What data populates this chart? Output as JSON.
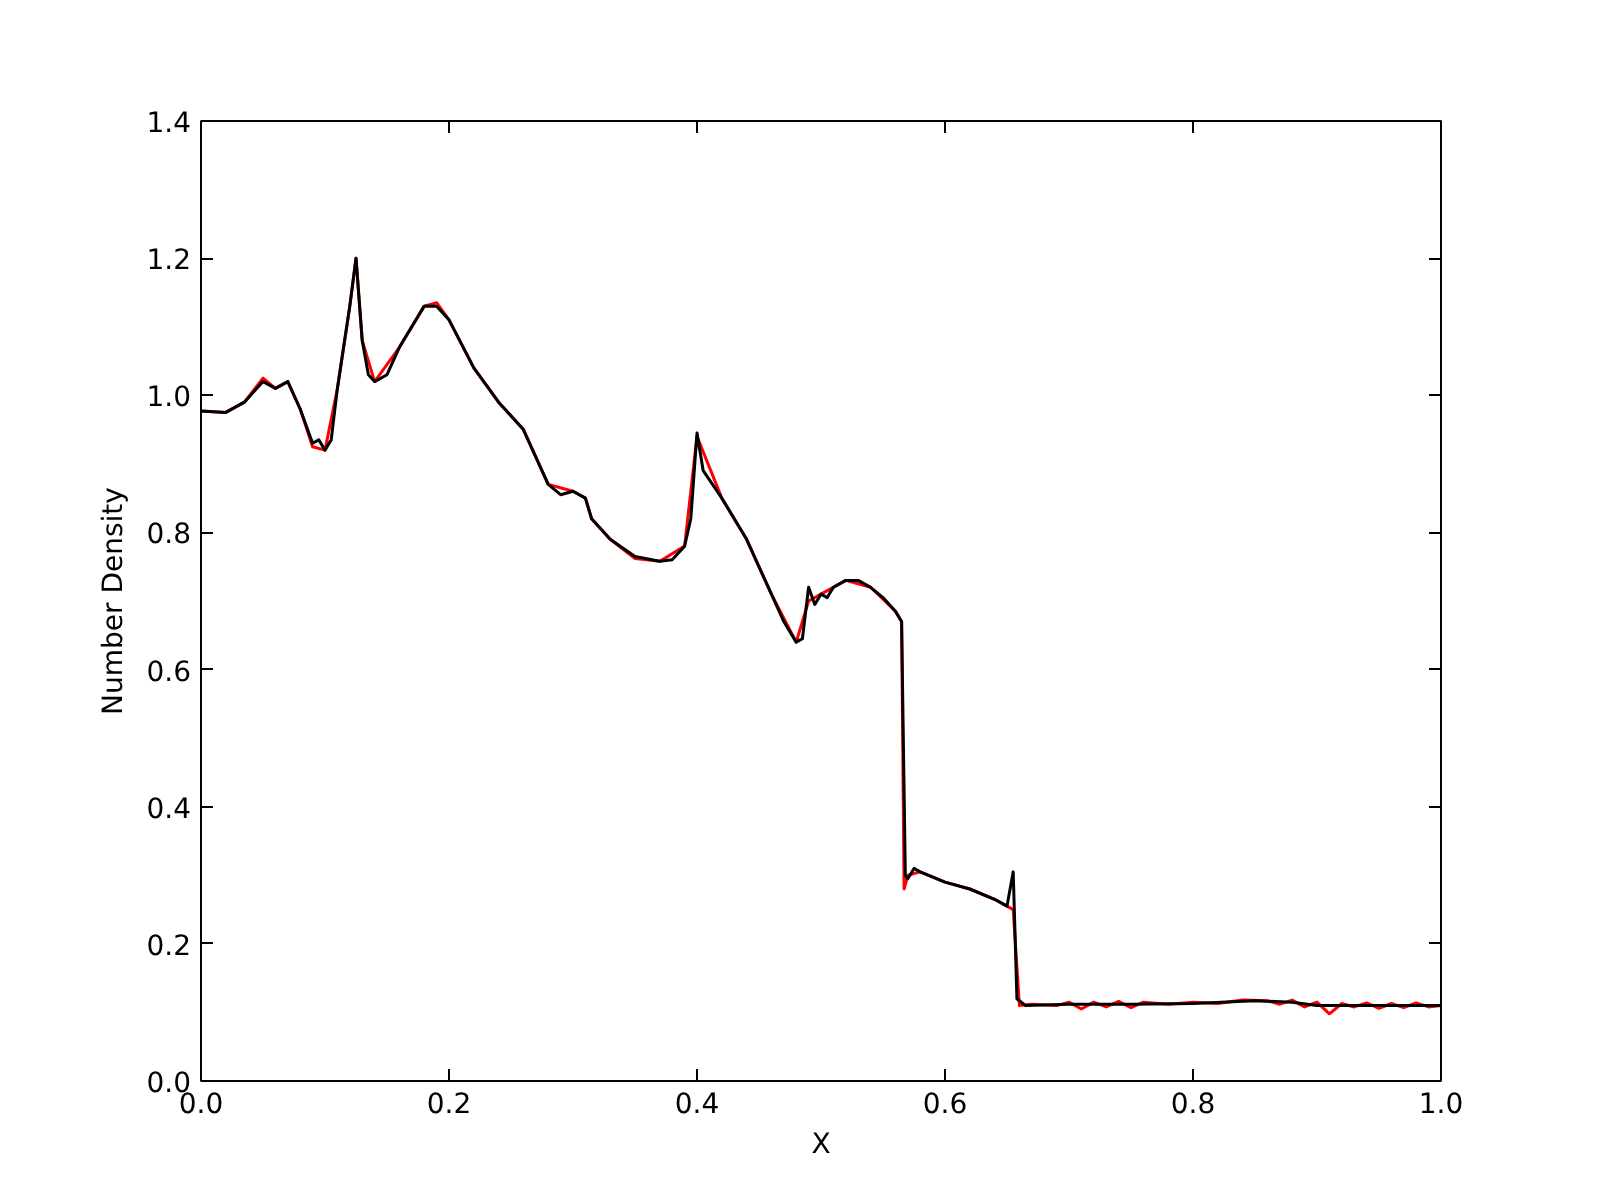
{
  "chart_data": {
    "type": "line",
    "xlabel": "X",
    "ylabel": "Number Density",
    "xlim": [
      0,
      1
    ],
    "ylim": [
      0,
      1.4
    ],
    "xticks": [
      {
        "value": 0,
        "label": "0.0"
      },
      {
        "value": 0.2,
        "label": "0.2"
      },
      {
        "value": 0.4,
        "label": "0.4"
      },
      {
        "value": 0.6,
        "label": "0.6"
      },
      {
        "value": 0.8,
        "label": "0.8"
      },
      {
        "value": 1,
        "label": "1.0"
      }
    ],
    "yticks": [
      {
        "value": 0,
        "label": "0.0"
      },
      {
        "value": 0.2,
        "label": "0.2"
      },
      {
        "value": 0.4,
        "label": "0.4"
      },
      {
        "value": 0.6,
        "label": "0.6"
      },
      {
        "value": 0.8,
        "label": "0.8"
      },
      {
        "value": 1,
        "label": "1.0"
      },
      {
        "value": 1.2,
        "label": "1.2"
      },
      {
        "value": 1.4,
        "label": "1.4"
      }
    ],
    "grid": false,
    "line_style": "solid",
    "marker": "none",
    "series": [
      {
        "color": "#ff0000",
        "x": [
          0,
          0.02,
          0.035,
          0.05,
          0.06,
          0.07,
          0.08,
          0.09,
          0.1,
          0.11,
          0.12,
          0.125,
          0.13,
          0.14,
          0.16,
          0.18,
          0.19,
          0.2,
          0.22,
          0.24,
          0.26,
          0.28,
          0.3,
          0.31,
          0.315,
          0.33,
          0.35,
          0.37,
          0.39,
          0.4,
          0.42,
          0.44,
          0.46,
          0.48,
          0.49,
          0.5,
          0.52,
          0.54,
          0.56,
          0.565,
          0.567,
          0.57,
          0.58,
          0.6,
          0.62,
          0.64,
          0.65,
          0.655,
          0.66,
          0.67,
          0.69,
          0.7,
          0.71,
          0.72,
          0.73,
          0.74,
          0.75,
          0.76,
          0.78,
          0.8,
          0.82,
          0.84,
          0.86,
          0.87,
          0.88,
          0.89,
          0.9,
          0.91,
          0.92,
          0.93,
          0.94,
          0.95,
          0.96,
          0.97,
          0.98,
          0.99,
          1.0
        ],
        "values": [
          0.977,
          0.975,
          0.99,
          1.025,
          1.01,
          1.02,
          0.98,
          0.925,
          0.92,
          1.01,
          1.13,
          1.2,
          1.08,
          1.02,
          1.07,
          1.13,
          1.135,
          1.11,
          1.04,
          0.99,
          0.95,
          0.87,
          0.86,
          0.85,
          0.82,
          0.79,
          0.762,
          0.758,
          0.78,
          0.94,
          0.85,
          0.79,
          0.71,
          0.64,
          0.7,
          0.71,
          0.73,
          0.72,
          0.685,
          0.67,
          0.28,
          0.3,
          0.305,
          0.29,
          0.28,
          0.265,
          0.255,
          0.25,
          0.11,
          0.112,
          0.11,
          0.115,
          0.105,
          0.115,
          0.108,
          0.116,
          0.107,
          0.115,
          0.112,
          0.115,
          0.113,
          0.118,
          0.117,
          0.112,
          0.118,
          0.108,
          0.115,
          0.098,
          0.113,
          0.108,
          0.114,
          0.106,
          0.113,
          0.107,
          0.114,
          0.108,
          0.11
        ]
      },
      {
        "color": "#000000",
        "x": [
          0,
          0.02,
          0.035,
          0.05,
          0.06,
          0.07,
          0.08,
          0.09,
          0.095,
          0.1,
          0.105,
          0.11,
          0.12,
          0.125,
          0.13,
          0.135,
          0.14,
          0.15,
          0.16,
          0.17,
          0.18,
          0.19,
          0.2,
          0.22,
          0.24,
          0.26,
          0.28,
          0.29,
          0.3,
          0.31,
          0.315,
          0.33,
          0.35,
          0.37,
          0.38,
          0.39,
          0.395,
          0.4,
          0.405,
          0.42,
          0.44,
          0.46,
          0.47,
          0.48,
          0.485,
          0.49,
          0.495,
          0.5,
          0.505,
          0.51,
          0.52,
          0.53,
          0.54,
          0.55,
          0.56,
          0.565,
          0.568,
          0.57,
          0.575,
          0.58,
          0.6,
          0.62,
          0.64,
          0.65,
          0.655,
          0.658,
          0.665,
          0.7,
          0.75,
          0.8,
          0.85,
          0.88,
          0.9,
          0.95,
          1.0
        ],
        "values": [
          0.977,
          0.975,
          0.99,
          1.02,
          1.01,
          1.02,
          0.98,
          0.93,
          0.935,
          0.92,
          0.935,
          1.01,
          1.13,
          1.2,
          1.08,
          1.03,
          1.02,
          1.03,
          1.07,
          1.1,
          1.13,
          1.13,
          1.11,
          1.04,
          0.99,
          0.95,
          0.87,
          0.855,
          0.86,
          0.85,
          0.82,
          0.79,
          0.765,
          0.758,
          0.76,
          0.78,
          0.82,
          0.945,
          0.89,
          0.85,
          0.79,
          0.71,
          0.67,
          0.64,
          0.645,
          0.72,
          0.695,
          0.71,
          0.705,
          0.72,
          0.73,
          0.73,
          0.72,
          0.705,
          0.685,
          0.67,
          0.3,
          0.295,
          0.31,
          0.305,
          0.29,
          0.28,
          0.265,
          0.255,
          0.305,
          0.12,
          0.11,
          0.112,
          0.112,
          0.113,
          0.117,
          0.115,
          0.11,
          0.11,
          0.11
        ]
      }
    ]
  }
}
